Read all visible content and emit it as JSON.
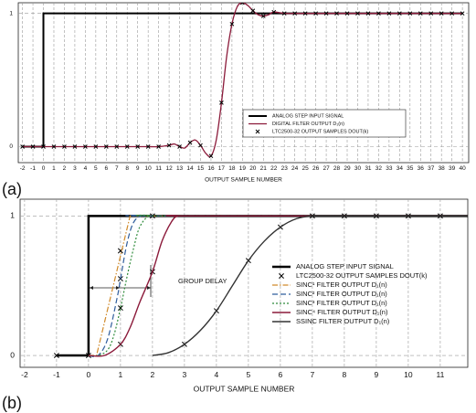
{
  "chart_data": [
    {
      "type": "line",
      "panel_label": "(a)",
      "x_label": "OUTPUT SAMPLE NUMBER",
      "xlim": [
        -2.4,
        40.6
      ],
      "ylim": [
        -0.12,
        1.08
      ],
      "xticks": [
        -2,
        -1,
        0,
        1,
        2,
        3,
        4,
        5,
        6,
        7,
        8,
        9,
        10,
        11,
        12,
        13,
        14,
        15,
        16,
        17,
        18,
        19,
        20,
        21,
        22,
        23,
        24,
        25,
        26,
        27,
        28,
        29,
        30,
        31,
        32,
        33,
        34,
        35,
        36,
        37,
        38,
        39,
        40
      ],
      "yticks": [
        0,
        1
      ],
      "grid": true,
      "legend": "lower right",
      "series": [
        {
          "name": "ANALOG STEP INPUT SIGNAL",
          "color": "#000000",
          "width": 2,
          "dash": "solid",
          "interpolation": "linear",
          "x": [
            -2,
            0,
            0,
            40
          ],
          "values": [
            0,
            0,
            1,
            1
          ]
        },
        {
          "name": "DIGITAL FILTER OUTPUT D₁(n)",
          "color": "#8b1a3a",
          "width": 1.3,
          "dash": "solid",
          "interpolation": "smooth",
          "x": [
            -2,
            -1,
            0,
            1,
            2,
            3,
            4,
            5,
            6,
            7,
            8,
            9,
            10,
            11,
            12,
            12.5,
            13,
            13.5,
            14,
            14.5,
            15,
            15.5,
            16,
            16.5,
            17,
            17.5,
            18,
            18.5,
            19,
            19.5,
            20,
            20.5,
            21,
            21.5,
            22,
            23,
            24,
            25,
            26,
            27,
            28,
            29,
            30,
            31,
            32,
            33,
            34,
            35,
            36,
            37,
            38,
            39,
            40
          ],
          "values": [
            0,
            0,
            0,
            0,
            0,
            0,
            0,
            0,
            0,
            0,
            0,
            0,
            0,
            0,
            0.01,
            0.02,
            0,
            -0.01,
            0.03,
            0.05,
            0.01,
            -0.05,
            -0.07,
            0.05,
            0.33,
            0.68,
            0.92,
            1.05,
            1.08,
            1.06,
            1.02,
            0.99,
            0.98,
            0.99,
            1.01,
            1,
            1,
            1,
            1,
            1,
            1,
            1,
            1,
            1,
            1,
            1,
            1,
            1,
            1,
            1,
            1,
            1,
            1
          ]
        },
        {
          "name": "LTC2500-32 OUTPUT SAMPLES DOUT(k)",
          "color": "#000000",
          "marker": "x",
          "x": [
            -2,
            -1,
            0,
            1,
            2,
            3,
            4,
            5,
            6,
            7,
            8,
            9,
            10,
            11,
            12,
            13,
            14,
            15,
            16,
            17,
            18,
            19,
            20,
            21,
            22,
            23,
            24,
            25,
            26,
            27,
            28,
            29,
            30,
            31,
            32,
            33,
            34,
            35,
            36,
            37,
            38,
            39,
            40
          ],
          "values": [
            0,
            0,
            0,
            0,
            0,
            0,
            0,
            0,
            0,
            0,
            0,
            0,
            0,
            0,
            0.01,
            0,
            0.03,
            0.01,
            -0.07,
            0.33,
            0.92,
            1.08,
            1.02,
            0.98,
            1.01,
            1,
            1,
            1,
            1,
            1,
            1,
            1,
            1,
            1,
            1,
            1,
            1,
            1,
            1,
            1,
            1,
            1,
            1
          ]
        }
      ]
    },
    {
      "type": "line",
      "panel_label": "(b)",
      "x_label": "OUTPUT SAMPLE NUMBER",
      "annotation": "GROUP DELAY",
      "xlim": [
        -2.14,
        11.86
      ],
      "ylim": [
        -0.085,
        1.12
      ],
      "xticks": [
        -2,
        -1,
        0,
        1,
        2,
        3,
        4,
        5,
        6,
        7,
        8,
        9,
        10,
        11
      ],
      "yticks": [
        0,
        1
      ],
      "grid": true,
      "legend": "right",
      "series": [
        {
          "name": "ANALOG STEP INPUT SIGNAL",
          "color": "#000000",
          "width": 2.5,
          "dash": "solid",
          "interpolation": "linear",
          "x": [
            -1,
            0,
            0,
            11.86
          ],
          "values": [
            0,
            0,
            1,
            1
          ]
        },
        {
          "name": "LTC2500-32 OUTPUT SAMPLES DOUT(k)",
          "color": "#000000",
          "marker": "x",
          "x": [
            -1,
            0,
            1,
            1,
            1,
            1,
            2,
            2,
            3,
            4,
            5,
            6,
            7,
            8,
            9,
            10,
            11
          ],
          "values": [
            0,
            0,
            0.75,
            0.55,
            0.34,
            0.08,
            0.6,
            1,
            0.08,
            0.32,
            0.68,
            0.92,
            1,
            1,
            1,
            1,
            1
          ]
        },
        {
          "name": "SINC¹ FILTER OUTPUT D₁(n)",
          "color": "#d08a2a",
          "width": 1.2,
          "dash": "dash-dot",
          "interpolation": "linear",
          "x": [
            0,
            0.25,
            1.3,
            11.86
          ],
          "values": [
            0,
            0,
            1,
            1
          ]
        },
        {
          "name": "SINC² FILTER OUTPUT D₁(n)",
          "color": "#2f5d9c",
          "width": 1.2,
          "dash": "dash",
          "interpolation": "smooth",
          "x": [
            0,
            0.3,
            0.6,
            0.9,
            1,
            1.2,
            1.4,
            1.65,
            2,
            11.86
          ],
          "values": [
            0,
            0,
            0.12,
            0.42,
            0.55,
            0.8,
            0.95,
            1,
            1,
            1
          ]
        },
        {
          "name": "SINC³ FILTER OUTPUT D₁(n)",
          "color": "#2e8b3a",
          "width": 1.2,
          "dash": "dot",
          "interpolation": "smooth",
          "x": [
            0,
            0.3,
            0.6,
            0.8,
            1,
            1.2,
            1.4,
            1.6,
            1.9,
            2.3,
            11.86
          ],
          "values": [
            0,
            0,
            0.04,
            0.15,
            0.34,
            0.56,
            0.76,
            0.92,
            1,
            1,
            1
          ]
        },
        {
          "name": "SINC⁴ FILTER OUTPUT D₁(n)",
          "color": "#8b1a3a",
          "width": 1.4,
          "dash": "solid",
          "interpolation": "smooth",
          "x": [
            0,
            0.5,
            1,
            1.3,
            1.6,
            2,
            2.3,
            2.6,
            2.8,
            3.2,
            11.86
          ],
          "values": [
            0,
            0,
            0.08,
            0.2,
            0.38,
            0.6,
            0.82,
            0.96,
            1,
            1,
            1
          ]
        },
        {
          "name": "SSINC FILTER OUTPUT D₁(n)",
          "color": "#333333",
          "width": 1.4,
          "dash": "solid",
          "interpolation": "smooth",
          "x": [
            2,
            2.5,
            3,
            3.5,
            4,
            4.5,
            5,
            5.5,
            6,
            6.5,
            7,
            7.5,
            11.86
          ],
          "values": [
            0,
            0.02,
            0.08,
            0.18,
            0.32,
            0.5,
            0.68,
            0.82,
            0.92,
            0.98,
            1,
            1,
            1
          ]
        }
      ]
    }
  ]
}
